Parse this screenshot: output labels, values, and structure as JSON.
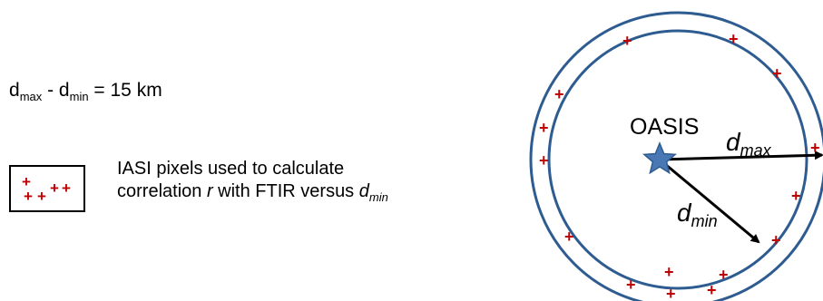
{
  "formula": {
    "d1": "d",
    "d1_sub": "max",
    "minus": " - ",
    "d2": "d",
    "d2_sub": "min",
    "rhs": " = 15 km"
  },
  "legend": {
    "line1": "IASI  pixels used to calculate",
    "line2_pre": "correlation ",
    "line2_r": "r",
    "line2_mid": " with FTIR versus ",
    "line2_d": "d",
    "line2_sub": "min",
    "marker_symbol": "+"
  },
  "diagram": {
    "station_label": "OASIS",
    "dmax_label": "d",
    "dmax_sub": "max",
    "dmin_label": "d",
    "dmin_sub": "min",
    "marker_symbol": "+",
    "colors": {
      "circle": "#2e5c91",
      "star": "#4a78b5",
      "marker": "#c00000",
      "arrow": "#000000"
    }
  }
}
